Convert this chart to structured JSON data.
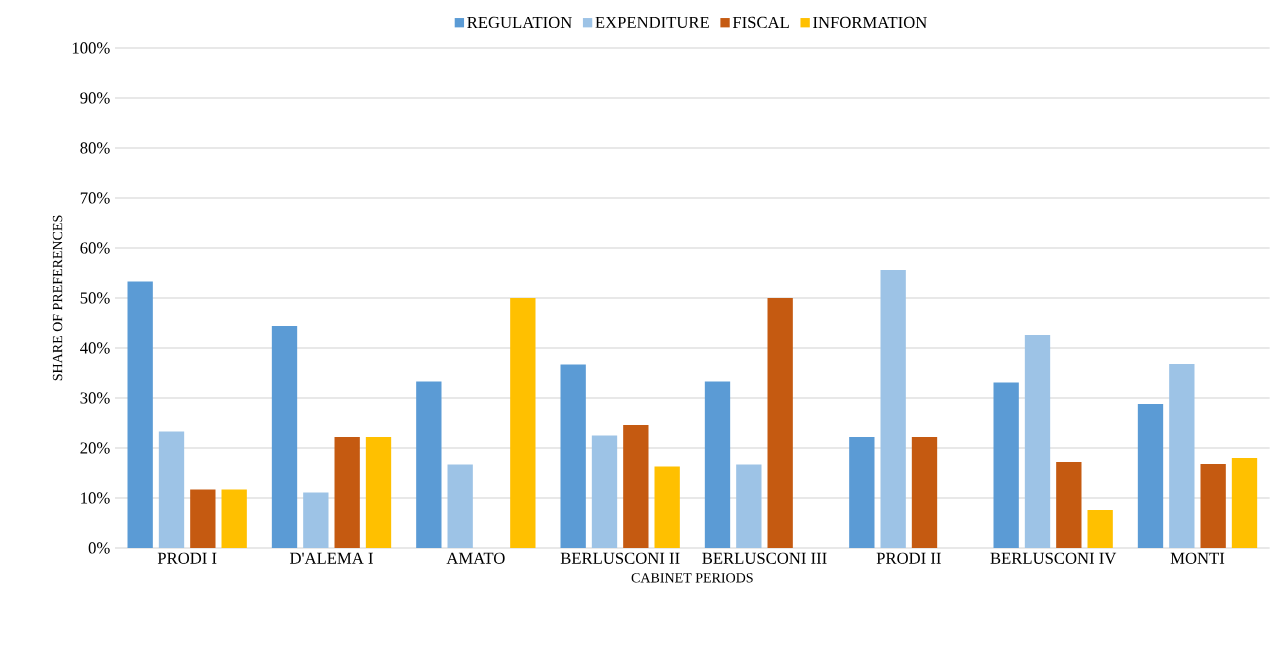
{
  "chart_data": {
    "type": "bar",
    "xlabel": "CABINET PERIODS",
    "ylabel": "SHARE OF PREFERENCES",
    "categories": [
      "PRODI I",
      "D'ALEMA I",
      "AMATO",
      "BERLUSCONI II",
      "BERLUSCONI III",
      "PRODI II",
      "BERLUSCONI IV",
      "MONTI"
    ],
    "series": [
      {
        "name": "REGULATION",
        "color": "#5b9bd5",
        "values": [
          53.3,
          44.4,
          33.3,
          36.7,
          33.3,
          22.2,
          33.1,
          28.8
        ]
      },
      {
        "name": "EXPENDITURE",
        "color": "#9dc3e6",
        "values": [
          23.3,
          11.1,
          16.7,
          22.5,
          16.7,
          55.6,
          42.6,
          36.8
        ]
      },
      {
        "name": "FISCAL",
        "color": "#c55a11",
        "values": [
          11.7,
          22.2,
          null,
          24.6,
          50.0,
          22.2,
          17.2,
          16.8
        ]
      },
      {
        "name": "INFORMATION",
        "color": "#ffc000",
        "values": [
          11.7,
          22.2,
          50.0,
          16.3,
          null,
          null,
          7.6,
          18.0
        ]
      }
    ],
    "ylim": [
      0,
      100
    ],
    "yticks": [
      {
        "value": 0,
        "label": "0%"
      },
      {
        "value": 10,
        "label": "10%"
      },
      {
        "value": 20,
        "label": "20%"
      },
      {
        "value": 30,
        "label": "30%"
      },
      {
        "value": 40,
        "label": "40%"
      },
      {
        "value": 50,
        "label": "50%"
      },
      {
        "value": 60,
        "label": "60%"
      },
      {
        "value": 70,
        "label": "70%"
      },
      {
        "value": 80,
        "label": "80%"
      },
      {
        "value": 90,
        "label": "90%"
      },
      {
        "value": 100,
        "label": "100%"
      }
    ],
    "grid": "y",
    "legend": "top"
  }
}
